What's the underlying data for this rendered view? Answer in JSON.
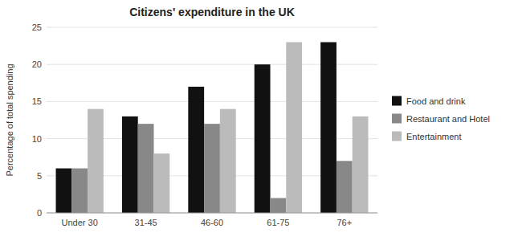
{
  "chart_data": {
    "type": "bar",
    "title": "Citizens' expenditure in the UK",
    "ylabel": "Percentage of total spending",
    "categories": [
      "Under 30",
      "31-45",
      "46-60",
      "61-75",
      "76+"
    ],
    "series": [
      {
        "name": "Food and drink",
        "values": [
          6,
          13,
          17,
          20,
          23
        ],
        "color": "#111111"
      },
      {
        "name": "Restaurant and Hotel",
        "values": [
          6,
          12,
          12,
          2,
          7
        ],
        "color": "#888888"
      },
      {
        "name": "Entertainment",
        "values": [
          14,
          8,
          14,
          23,
          13
        ],
        "color": "#bbbbbb"
      }
    ],
    "ylim": [
      0,
      25
    ],
    "yticks": [
      0,
      5,
      10,
      15,
      20,
      25
    ],
    "grid": true,
    "legend": "right"
  }
}
